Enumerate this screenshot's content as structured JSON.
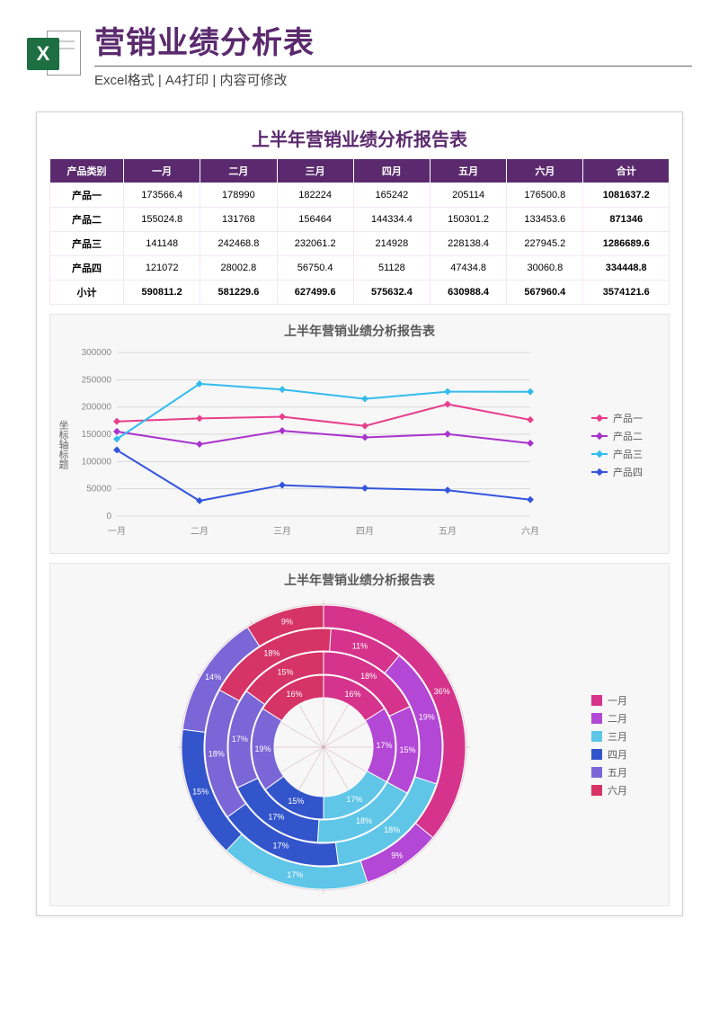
{
  "header": {
    "title": "营销业绩分析表",
    "subtitle": "Excel格式 | A4打印 | 内容可修改",
    "icon_letter": "X"
  },
  "report": {
    "title": "上半年营销业绩分析报告表"
  },
  "table": {
    "corner": "产品类别",
    "months": [
      "一月",
      "二月",
      "三月",
      "四月",
      "五月",
      "六月"
    ],
    "total_label": "合计",
    "subtotal_label": "小计",
    "rows": [
      {
        "label": "产品一",
        "values": [
          "173566.4",
          "178990",
          "182224",
          "165242",
          "205114",
          "176500.8"
        ],
        "total": "1081637.2"
      },
      {
        "label": "产品二",
        "values": [
          "155024.8",
          "131768",
          "156464",
          "144334.4",
          "150301.2",
          "133453.6"
        ],
        "total": "871346"
      },
      {
        "label": "产品三",
        "values": [
          "141148",
          "242468.8",
          "232061.2",
          "214928",
          "228138.4",
          "227945.2"
        ],
        "total": "1286689.6"
      },
      {
        "label": "产品四",
        "values": [
          "121072",
          "28002.8",
          "56750.4",
          "51128",
          "47434.8",
          "30060.8"
        ],
        "total": "334448.8"
      }
    ],
    "subtotal": {
      "values": [
        "590811.2",
        "581229.6",
        "627499.6",
        "575632.4",
        "630988.4",
        "567960.4"
      ],
      "total": "3574121.6"
    },
    "header_bg": "#5b2a6e",
    "header_fg": "#ffffff",
    "cell_border": "#f5e6f5"
  },
  "line_chart": {
    "title": "上半年营销业绩分析报告表",
    "ylabel": "坐标轴标题",
    "categories": [
      "一月",
      "二月",
      "三月",
      "四月",
      "五月",
      "六月"
    ],
    "ylim": [
      0,
      300000
    ],
    "ytick_step": 50000,
    "background": "#f7f7f7",
    "grid_color": "#d9d9d9",
    "marker_size": 4,
    "line_width": 2,
    "series": [
      {
        "name": "产品一",
        "color": "#e83e8c",
        "values": [
          173566.4,
          178990,
          182224,
          165242,
          205114,
          176500.8
        ]
      },
      {
        "name": "产品二",
        "color": "#a933cc",
        "values": [
          155024.8,
          131768,
          156464,
          144334.4,
          150301.2,
          133453.6
        ]
      },
      {
        "name": "产品三",
        "color": "#33bbee",
        "values": [
          141148,
          242468.8,
          232061.2,
          214928,
          228138.4,
          227945.2
        ]
      },
      {
        "name": "产品四",
        "color": "#3355dd",
        "values": [
          121072,
          28002.8,
          56750.4,
          51128,
          47434.8,
          30060.8
        ]
      }
    ]
  },
  "donut_chart": {
    "title": "上半年营销业绩分析报告表",
    "background": "#f7f7f7",
    "grid_color": "rgba(140,30,60,0.18)",
    "legend": [
      "一月",
      "二月",
      "三月",
      "四月",
      "五月",
      "六月"
    ],
    "legend_colors": [
      "#d6338c",
      "#b347d6",
      "#5fc6e8",
      "#3355cc",
      "#7a66d6",
      "#d63366"
    ],
    "rings": [
      {
        "segments": [
          {
            "pct": 16,
            "color": "#d6338c"
          },
          {
            "pct": 17,
            "color": "#b347d6"
          },
          {
            "pct": 17,
            "color": "#5fc6e8"
          },
          {
            "pct": 15,
            "color": "#3355cc"
          },
          {
            "pct": 19,
            "color": "#7a66d6"
          },
          {
            "pct": 16,
            "color": "#d63366"
          }
        ]
      },
      {
        "segments": [
          {
            "pct": 18,
            "color": "#d6338c"
          },
          {
            "pct": 15,
            "color": "#b347d6"
          },
          {
            "pct": 18,
            "color": "#5fc6e8"
          },
          {
            "pct": 17,
            "color": "#3355cc"
          },
          {
            "pct": 17,
            "color": "#7a66d6"
          },
          {
            "pct": 15,
            "color": "#d63366"
          }
        ]
      },
      {
        "segments": [
          {
            "pct": 11,
            "color": "#d6338c"
          },
          {
            "pct": 19,
            "color": "#b347d6"
          },
          {
            "pct": 18,
            "color": "#5fc6e8"
          },
          {
            "pct": 17,
            "color": "#3355cc"
          },
          {
            "pct": 18,
            "color": "#7a66d6"
          },
          {
            "pct": 18,
            "color": "#d63366"
          }
        ]
      },
      {
        "segments": [
          {
            "pct": 36,
            "color": "#d6338c"
          },
          {
            "pct": 9,
            "color": "#b347d6"
          },
          {
            "pct": 17,
            "color": "#5fc6e8"
          },
          {
            "pct": 15,
            "color": "#3355cc"
          },
          {
            "pct": 14,
            "color": "#7a66d6"
          },
          {
            "pct": 9,
            "color": "#d63366"
          }
        ]
      }
    ]
  }
}
